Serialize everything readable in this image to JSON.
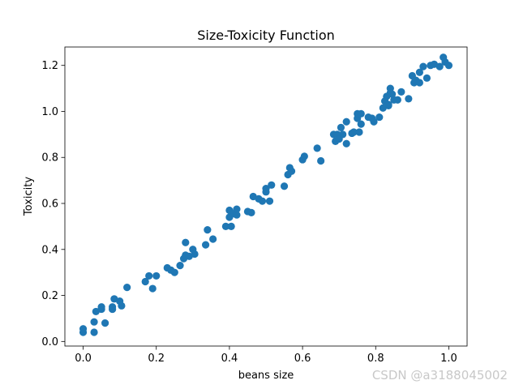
{
  "chart_data": {
    "type": "scatter",
    "title": "Size-Toxicity Function",
    "xlabel": "beans size",
    "ylabel": "Toxicity",
    "xlim": [
      -0.05,
      1.05
    ],
    "ylim": [
      -0.02,
      1.28
    ],
    "xticks": [
      0.0,
      0.2,
      0.4,
      0.6,
      0.8,
      1.0
    ],
    "xtick_labels": [
      "0.0",
      "0.2",
      "0.4",
      "0.6",
      "0.8",
      "1.0"
    ],
    "yticks": [
      0.0,
      0.2,
      0.4,
      0.6,
      0.8,
      1.0,
      1.2
    ],
    "ytick_labels": [
      "0.0",
      "0.2",
      "0.4",
      "0.6",
      "0.8",
      "1.0",
      "1.2"
    ],
    "grid": false,
    "color": "#1f77b4",
    "x": [
      0.0,
      0.0,
      0.03,
      0.03,
      0.035,
      0.05,
      0.05,
      0.06,
      0.08,
      0.08,
      0.085,
      0.1,
      0.105,
      0.12,
      0.17,
      0.18,
      0.19,
      0.2,
      0.23,
      0.24,
      0.25,
      0.265,
      0.275,
      0.28,
      0.28,
      0.29,
      0.3,
      0.305,
      0.335,
      0.34,
      0.355,
      0.39,
      0.4,
      0.4,
      0.405,
      0.41,
      0.42,
      0.42,
      0.45,
      0.46,
      0.465,
      0.48,
      0.49,
      0.5,
      0.5,
      0.51,
      0.515,
      0.55,
      0.56,
      0.565,
      0.57,
      0.6,
      0.605,
      0.64,
      0.65,
      0.685,
      0.69,
      0.695,
      0.7,
      0.705,
      0.71,
      0.72,
      0.72,
      0.735,
      0.74,
      0.75,
      0.75,
      0.755,
      0.76,
      0.76,
      0.78,
      0.79,
      0.795,
      0.81,
      0.82,
      0.825,
      0.83,
      0.835,
      0.84,
      0.845,
      0.85,
      0.86,
      0.87,
      0.89,
      0.9,
      0.905,
      0.91,
      0.92,
      0.93,
      0.94,
      0.95,
      0.96,
      0.975,
      0.985,
      0.99,
      1.0,
      0.835,
      0.84,
      0.92
    ],
    "y": [
      0.04,
      0.055,
      0.04,
      0.085,
      0.13,
      0.14,
      0.15,
      0.08,
      0.15,
      0.14,
      0.185,
      0.175,
      0.155,
      0.235,
      0.26,
      0.285,
      0.23,
      0.285,
      0.32,
      0.31,
      0.3,
      0.33,
      0.36,
      0.375,
      0.43,
      0.37,
      0.4,
      0.38,
      0.42,
      0.485,
      0.445,
      0.5,
      0.54,
      0.57,
      0.5,
      0.555,
      0.55,
      0.575,
      0.565,
      0.56,
      0.63,
      0.62,
      0.61,
      0.65,
      0.665,
      0.61,
      0.68,
      0.675,
      0.725,
      0.755,
      0.74,
      0.79,
      0.805,
      0.84,
      0.785,
      0.9,
      0.87,
      0.9,
      0.88,
      0.93,
      0.9,
      0.86,
      0.955,
      0.905,
      0.91,
      0.97,
      0.99,
      0.91,
      0.945,
      0.99,
      0.975,
      0.97,
      0.955,
      0.975,
      1.015,
      1.045,
      1.065,
      1.03,
      1.1,
      1.075,
      1.05,
      1.05,
      1.085,
      1.055,
      1.155,
      1.125,
      1.135,
      1.125,
      1.195,
      1.145,
      1.2,
      1.205,
      1.195,
      1.235,
      1.215,
      1.2,
      1.025,
      1.08,
      1.17
    ]
  },
  "watermark": "CSDN @a3188045002"
}
